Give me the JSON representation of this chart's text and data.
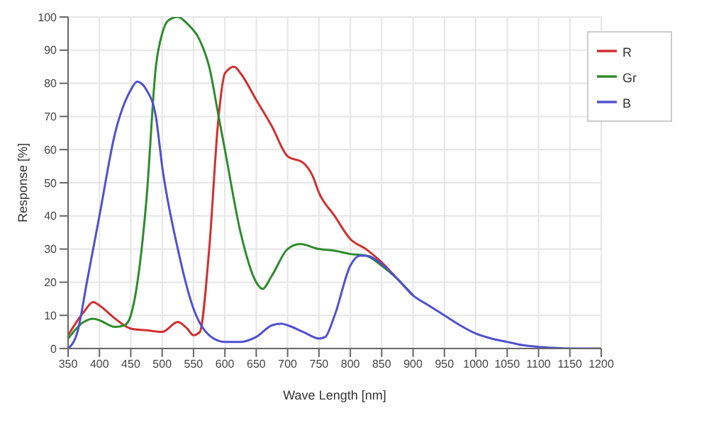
{
  "chart_data": {
    "type": "line",
    "xlabel": "Wave Length [nm]",
    "ylabel": "Response [%]",
    "xlim": [
      350,
      1200
    ],
    "ylim": [
      0,
      100
    ],
    "xticks": [
      350,
      400,
      450,
      500,
      550,
      600,
      650,
      700,
      750,
      800,
      850,
      900,
      950,
      1000,
      1050,
      1100,
      1150,
      1200
    ],
    "yticks": [
      0,
      10,
      20,
      30,
      40,
      50,
      60,
      70,
      80,
      90,
      100
    ],
    "grid": true,
    "legend": "top right",
    "marker": "none",
    "line_style": "solid",
    "series": [
      {
        "name": "R",
        "color": "#d03030",
        "x": [
          350,
          375,
          390,
          400,
          425,
          450,
          475,
          500,
          525,
          540,
          550,
          560,
          575,
          590,
          600,
          615,
          625,
          650,
          675,
          700,
          725,
          740,
          750,
          775,
          800,
          825,
          850,
          875,
          900
        ],
        "values": [
          4,
          11,
          14,
          13,
          9,
          6,
          5.5,
          5,
          8,
          6,
          4,
          5,
          30,
          70,
          83,
          85,
          83,
          75,
          67,
          58,
          56,
          52,
          47,
          40,
          33,
          30,
          26,
          21,
          16
        ]
      },
      {
        "name": "Gr",
        "color": "#2e8b2e",
        "x": [
          350,
          375,
          390,
          400,
          425,
          440,
          450,
          475,
          490,
          500,
          510,
          525,
          540,
          560,
          575,
          590,
          600,
          625,
          650,
          660,
          675,
          700,
          720,
          750,
          775,
          800,
          825,
          850,
          875,
          900
        ],
        "values": [
          3,
          8,
          9,
          8.5,
          6.5,
          7,
          10,
          45,
          85,
          95,
          99,
          100,
          98,
          93,
          85,
          70,
          60,
          35,
          20,
          18,
          22,
          30,
          31.5,
          30,
          29.5,
          28.5,
          28,
          25,
          21,
          16
        ]
      },
      {
        "name": "B",
        "color": "#5050d0",
        "x": [
          350,
          365,
          380,
          400,
          425,
          450,
          460,
          475,
          490,
          500,
          525,
          550,
          575,
          600,
          625,
          650,
          675,
          690,
          700,
          725,
          750,
          760,
          775,
          800,
          815,
          825,
          850,
          875,
          900,
          925,
          950,
          975,
          1000,
          1025,
          1050,
          1075,
          1100,
          1150,
          1200
        ],
        "values": [
          0,
          5,
          20,
          40,
          65,
          78,
          80.5,
          78,
          70,
          55,
          30,
          12,
          4,
          2,
          2,
          3.5,
          7,
          7.5,
          7,
          5,
          3,
          3.5,
          10,
          25,
          28,
          28,
          25.5,
          21,
          16,
          13,
          10,
          7,
          4.5,
          3,
          2,
          1,
          0.5,
          0,
          0
        ]
      }
    ]
  }
}
